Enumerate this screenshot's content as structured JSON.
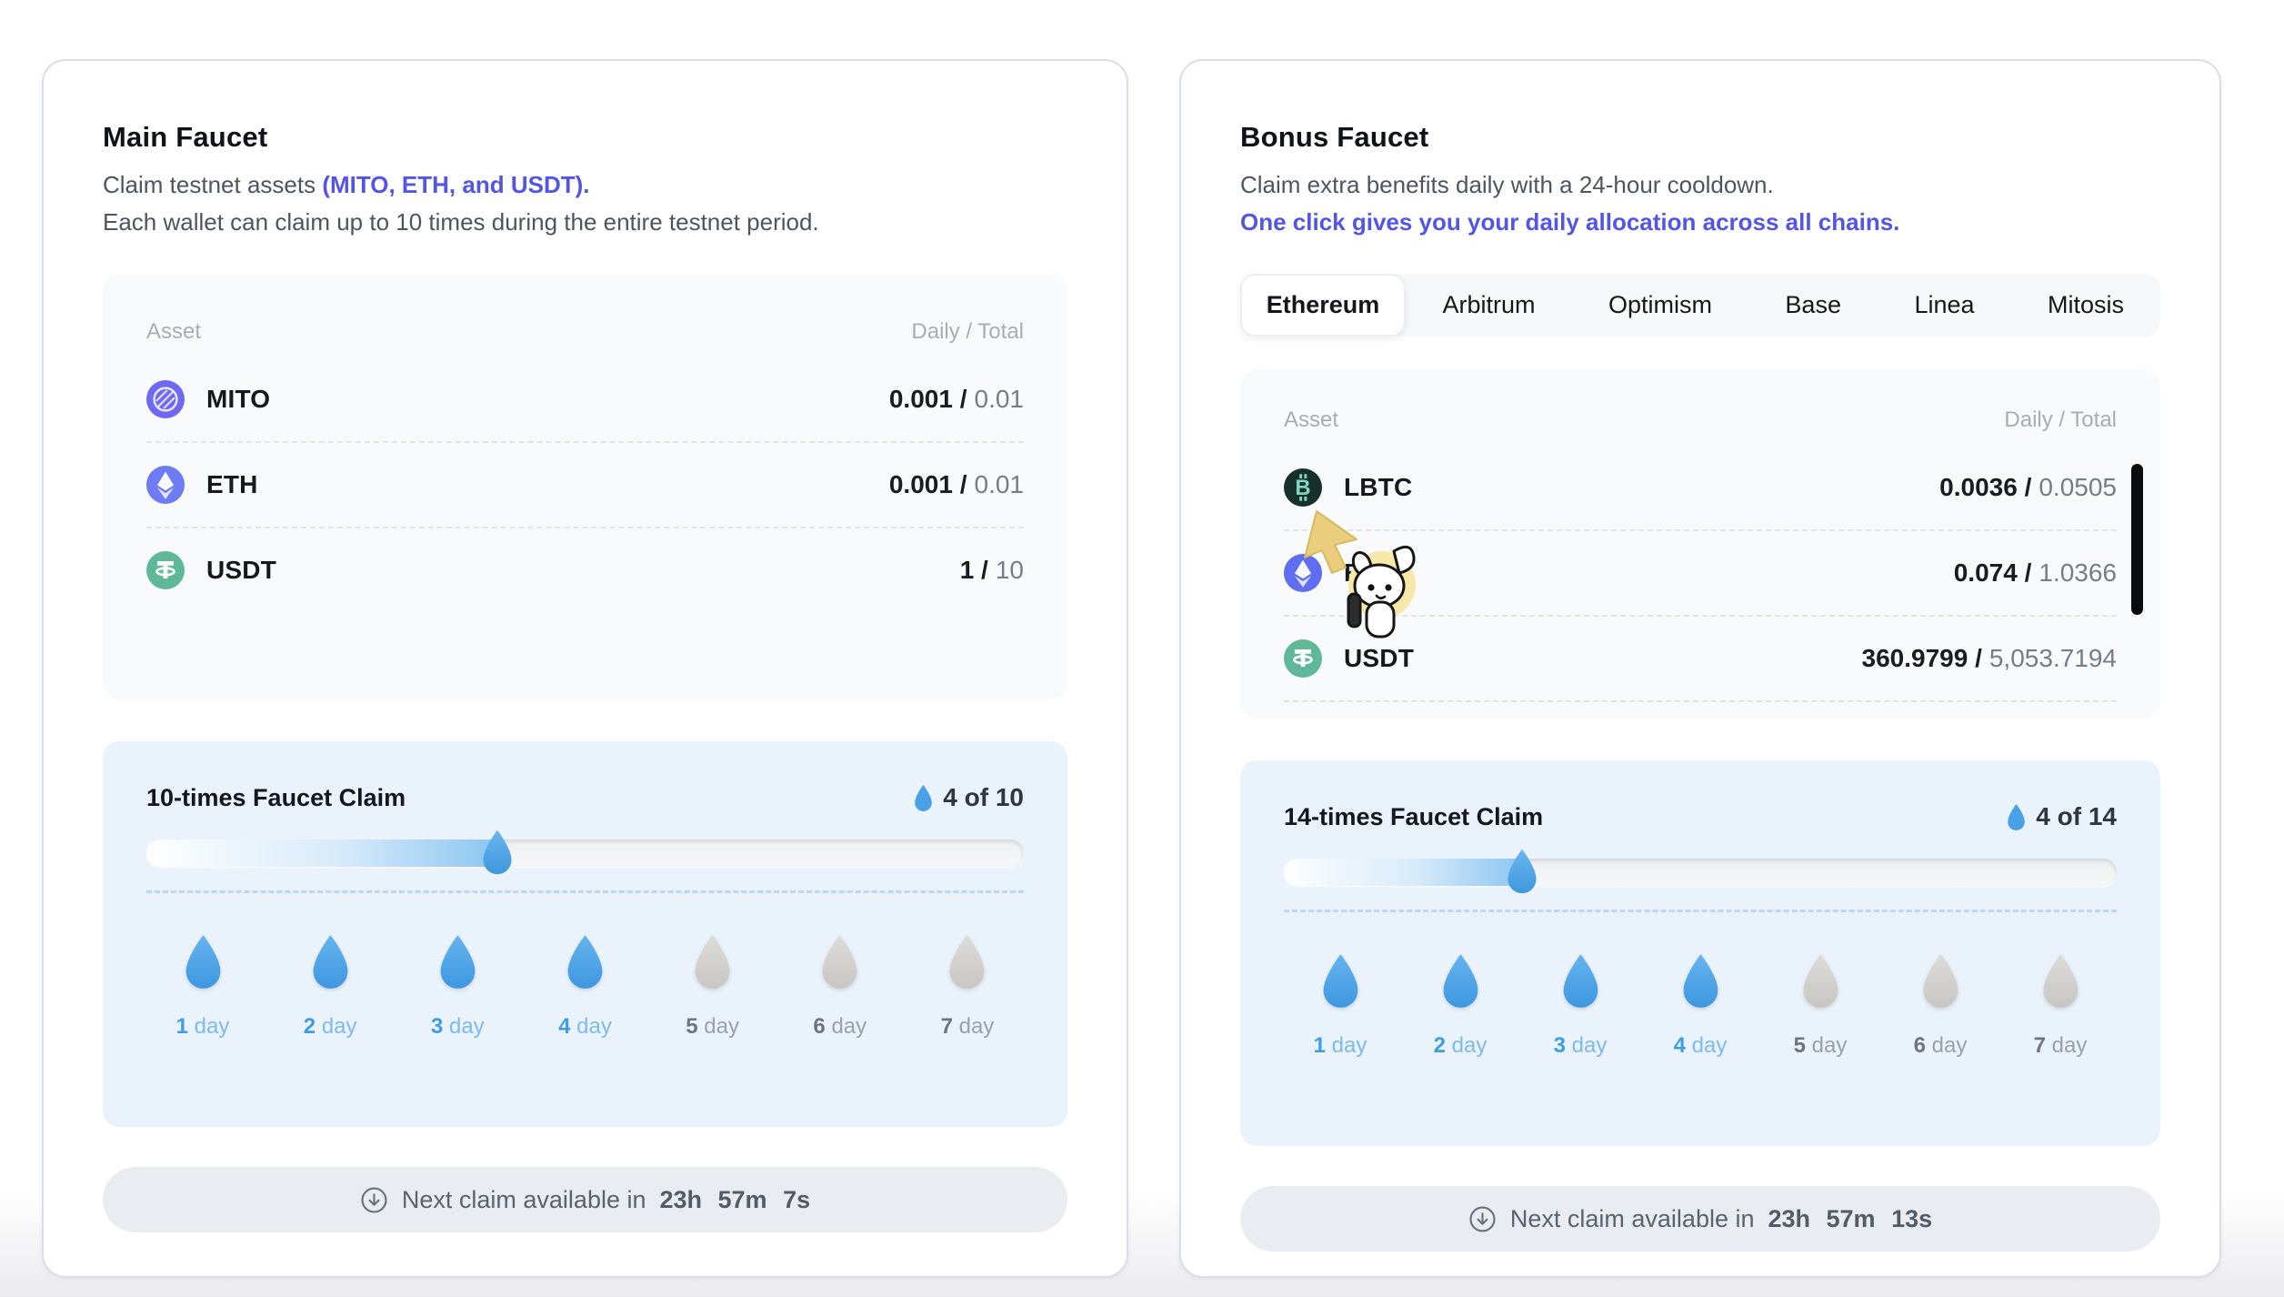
{
  "main_faucet": {
    "title": "Main Faucet",
    "desc_prefix": "Claim testnet assets ",
    "desc_link": "(MITO, ETH, and USDT).",
    "desc_line2": "Each wallet can claim up to 10 times during the entire testnet period.",
    "table": {
      "asset_header": "Asset",
      "value_header": "Daily / Total",
      "rows": [
        {
          "name": "MITO",
          "icon": "mito-coin-icon",
          "daily": "0.001 /",
          "total": "0.01"
        },
        {
          "name": "ETH",
          "icon": "eth-coin-icon",
          "daily": "0.001 /",
          "total": "0.01"
        },
        {
          "name": "USDT",
          "icon": "usdt-coin-icon",
          "daily": "1 /",
          "total": "10"
        }
      ]
    },
    "claim": {
      "title": "10-times Faucet Claim",
      "count_label": "4 of 10",
      "progress_percent": 40,
      "days": [
        {
          "num": "1",
          "unit": "day",
          "active": true
        },
        {
          "num": "2",
          "unit": "day",
          "active": true
        },
        {
          "num": "3",
          "unit": "day",
          "active": true
        },
        {
          "num": "4",
          "unit": "day",
          "active": true
        },
        {
          "num": "5",
          "unit": "day",
          "active": false
        },
        {
          "num": "6",
          "unit": "day",
          "active": false
        },
        {
          "num": "7",
          "unit": "day",
          "active": false
        }
      ]
    },
    "next_claim": {
      "label": "Next claim available in",
      "time": "23h 57m 7s"
    }
  },
  "bonus_faucet": {
    "title": "Bonus Faucet",
    "desc_line1": "Claim extra benefits daily with a 24-hour cooldown.",
    "desc_link": "One click gives you your daily allocation across all chains.",
    "tabs": [
      {
        "label": "Ethereum",
        "active": true
      },
      {
        "label": "Arbitrum",
        "active": false
      },
      {
        "label": "Optimism",
        "active": false
      },
      {
        "label": "Base",
        "active": false
      },
      {
        "label": "Linea",
        "active": false
      },
      {
        "label": "Mitosis",
        "active": false
      }
    ],
    "table": {
      "asset_header": "Asset",
      "value_header": "Daily / Total",
      "rows": [
        {
          "name": "LBTC",
          "icon": "lbtc-coin-icon",
          "daily": "0.0036 /",
          "total": "0.0505"
        },
        {
          "name": "ETH",
          "icon": "eth-coin-icon",
          "daily": "0.074 /",
          "total": "1.0366"
        },
        {
          "name": "USDT",
          "icon": "usdt-coin-icon",
          "daily": "360.9799 /",
          "total": "5,053.7194"
        }
      ]
    },
    "claim": {
      "title": "14-times Faucet Claim",
      "count_label": "4 of 14",
      "progress_percent": 28.6,
      "days": [
        {
          "num": "1",
          "unit": "day",
          "active": true
        },
        {
          "num": "2",
          "unit": "day",
          "active": true
        },
        {
          "num": "3",
          "unit": "day",
          "active": true
        },
        {
          "num": "4",
          "unit": "day",
          "active": true
        },
        {
          "num": "5",
          "unit": "day",
          "active": false
        },
        {
          "num": "6",
          "unit": "day",
          "active": false
        },
        {
          "num": "7",
          "unit": "day",
          "active": false
        }
      ]
    },
    "next_claim": {
      "label": "Next claim available in",
      "time": "23h 57m 13s"
    }
  },
  "colors": {
    "accent_purple": "#5356e4",
    "drop_blue": "#4aa3e8",
    "drop_gray": "#d0cfcd",
    "usdt_green": "#5fb999",
    "eth_indigo": "#6e7cf3",
    "mito_purple": "#6f68f2",
    "lbtc_dark": "#17302b",
    "lbtc_teal": "#7fd6c0",
    "claim_bg_blue": "#eaf2fc"
  }
}
